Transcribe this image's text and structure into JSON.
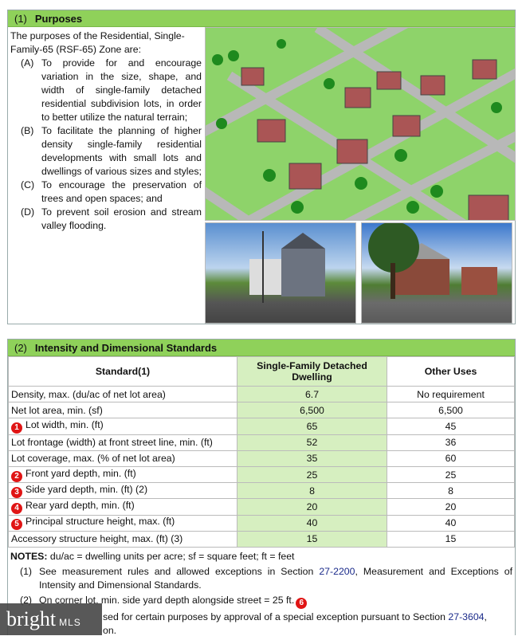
{
  "section1": {
    "number": "(1)",
    "title": "Purposes",
    "intro": "The purposes of the Residential, Single-Family-65 (RSF-65) Zone are:",
    "items": [
      {
        "letter": "(A)",
        "text": "To provide for and encourage variation in the size, shape, and width of single-family detached residential subdivision lots, in order to better utilize the natural terrain;"
      },
      {
        "letter": "(B)",
        "text": "To facilitate the planning of higher density single-family residential developments with small lots and dwellings of various sizes and styles;"
      },
      {
        "letter": "(C)",
        "text": "To encourage the preservation of trees and open spaces; and"
      },
      {
        "letter": "(D)",
        "text": "To prevent soil erosion and stream valley flooding."
      }
    ]
  },
  "section2": {
    "number": "(2)",
    "title": "Intensity and Dimensional Standards",
    "columns": [
      "Standard(1)",
      "Single-Family Detached Dwelling",
      "Other Uses"
    ],
    "rows": [
      {
        "badge": "",
        "label": "Density, max. (du/ac of net lot area)",
        "sfd": "6.7",
        "other": "No requirement"
      },
      {
        "badge": "",
        "label": "Net lot area, min. (sf)",
        "sfd": "6,500",
        "other": "6,500"
      },
      {
        "badge": "1",
        "label": "Lot width, min. (ft)",
        "sfd": "65",
        "other": "45"
      },
      {
        "badge": "",
        "label": "Lot frontage (width) at front street line, min. (ft)",
        "sfd": "52",
        "other": "36"
      },
      {
        "badge": "",
        "label": "Lot coverage, max. (% of net lot area)",
        "sfd": "35",
        "other": "60"
      },
      {
        "badge": "2",
        "label": "Front yard depth, min. (ft)",
        "sfd": "25",
        "other": "25"
      },
      {
        "badge": "3",
        "label": "Side yard depth, min. (ft) (2)",
        "sfd": "8",
        "other": "8"
      },
      {
        "badge": "4",
        "label": "Rear yard depth, min. (ft)",
        "sfd": "20",
        "other": "20"
      },
      {
        "badge": "5",
        "label": "Principal structure height, max. (ft)",
        "sfd": "40",
        "other": "40"
      },
      {
        "badge": "",
        "label": "Accessory structure height, max. (ft) (3)",
        "sfd": "15",
        "other": "15"
      }
    ],
    "notes": {
      "label": "NOTES:",
      "abbrev": "du/ac = dwelling units per acre; sf = square feet; ft = feet",
      "n1": {
        "num": "(1)",
        "pre": "See measurement rules and allowed exceptions in Section ",
        "link": "27-2200",
        "post": ", Measurement and Exceptions of Intensity and Dimensional Standards."
      },
      "n2": {
        "num": "(2)",
        "text": "On corner lot, min. side yard depth alongside street = 25 ft.",
        "badge": "6"
      },
      "n3": {
        "pre": "sed for certain purposes by approval of a special exception pursuant to Section ",
        "link": "27-3604",
        "post": ",",
        "line2": "on."
      }
    }
  },
  "watermark": {
    "brand": "bright",
    "suffix": "MLS"
  },
  "colors": {
    "header_green": "#8fd15a",
    "column_green": "#d6efc0",
    "badge_red": "#e01515",
    "link": "#1a2a8a"
  }
}
